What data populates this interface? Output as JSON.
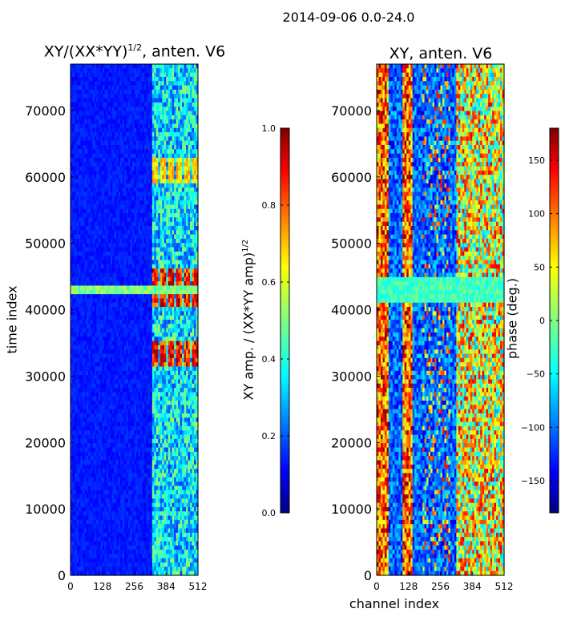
{
  "figure": {
    "suptitle": "2014-09-06 0.0-24.0",
    "xlabel": "channel index",
    "ylabel": "time index"
  },
  "chart_data": [
    {
      "type": "heatmap",
      "title_text": "XY/(XX*YY)",
      "title_exp": "1/2",
      "title_suffix": ", anten. V6",
      "x_ticks": [
        0,
        128,
        256,
        384,
        512
      ],
      "y_ticks": [
        0,
        10000,
        20000,
        30000,
        40000,
        50000,
        60000,
        70000
      ],
      "xlim": [
        0,
        512
      ],
      "ylim": [
        0,
        77000
      ],
      "colormap": "jet",
      "grid": false,
      "colorbar": {
        "label": "XY amp. / (XX*YY amp)",
        "label_exp": "1/2",
        "range": [
          0.0,
          1.0
        ],
        "ticks": [
          "0.0",
          "0.2",
          "0.4",
          "0.6",
          "0.8",
          "1.0"
        ]
      }
    },
    {
      "type": "heatmap",
      "title": "XY, anten. V6",
      "x_ticks": [
        0,
        128,
        256,
        384,
        512
      ],
      "y_ticks": [
        0,
        10000,
        20000,
        30000,
        40000,
        50000,
        60000,
        70000
      ],
      "xlim": [
        0,
        512
      ],
      "ylim": [
        0,
        77000
      ],
      "colormap": "jet",
      "grid": false,
      "colorbar": {
        "label": "phase (deg.)",
        "range": [
          -180,
          180
        ],
        "ticks": [
          "−150",
          "−100",
          "−50",
          "0",
          "50",
          "100",
          "150"
        ]
      }
    }
  ]
}
